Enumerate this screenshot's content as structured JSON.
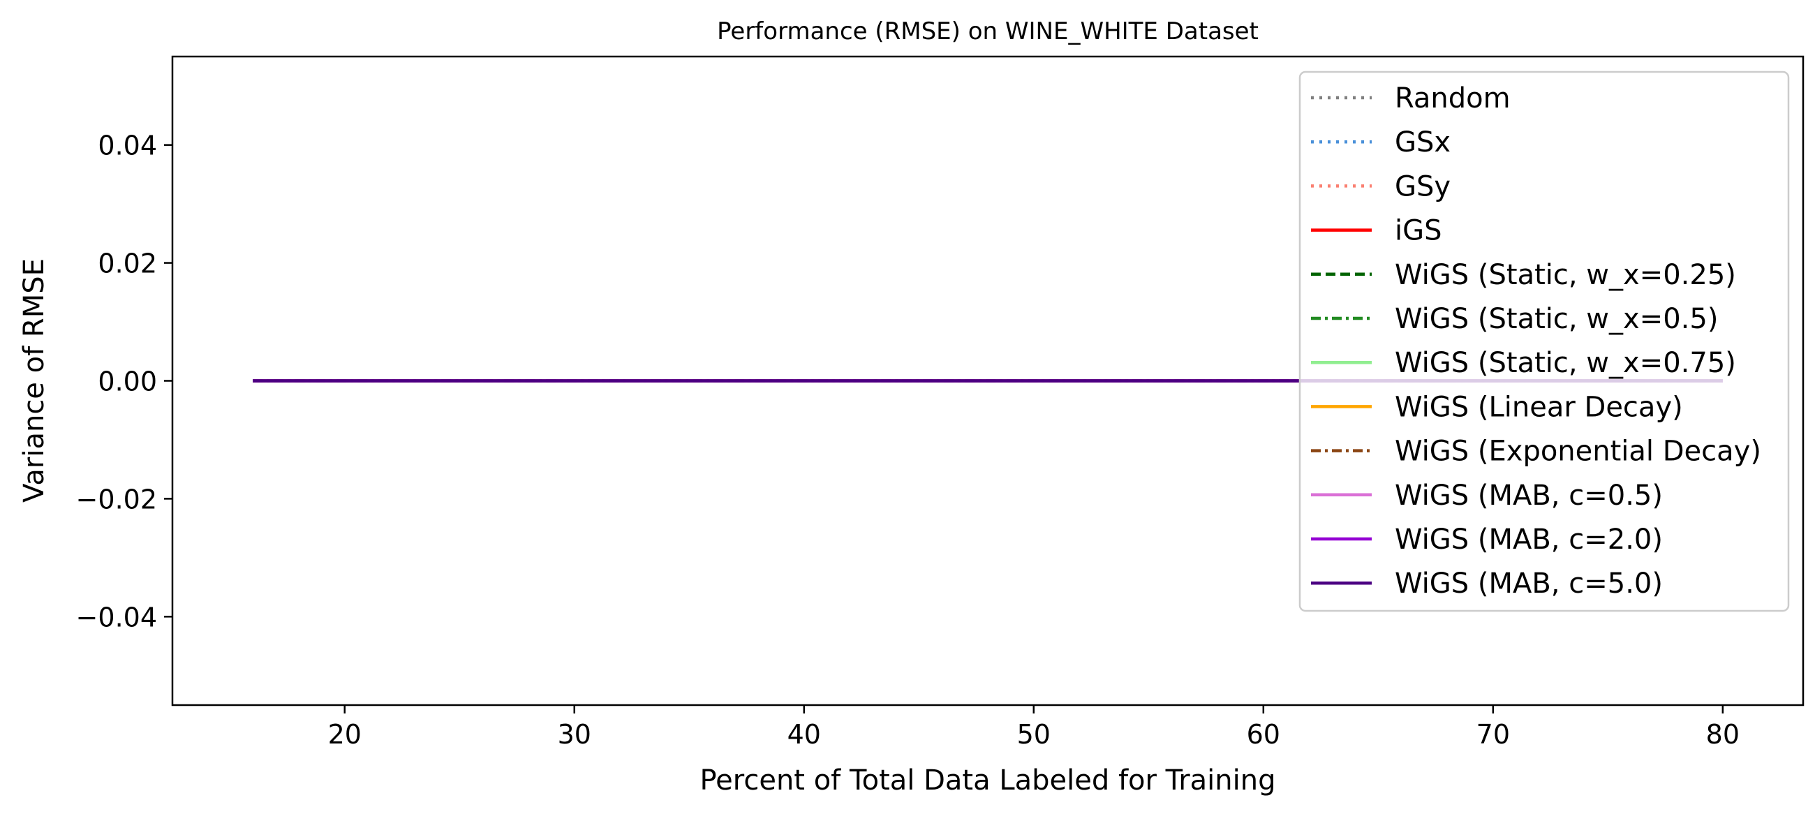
{
  "chart_data": {
    "type": "line",
    "title": "Performance (RMSE) on WINE_WHITE Dataset",
    "xlabel": "Percent of Total Data Labeled for Training",
    "ylabel": "Variance of RMSE",
    "xlim": [
      12.5,
      83.5
    ],
    "ylim": [
      -0.055,
      0.055
    ],
    "xticks": [
      20,
      30,
      40,
      50,
      60,
      70,
      80
    ],
    "yticks": [
      0.04,
      0.02,
      0.0,
      -0.02,
      -0.04
    ],
    "xtick_labels": [
      "20",
      "30",
      "40",
      "50",
      "60",
      "70",
      "80"
    ],
    "ytick_labels": [
      "0.04",
      "0.02",
      "0.00",
      "−0.02",
      "−0.04"
    ],
    "grid": false,
    "legend_position": "top-right",
    "x": [
      16,
      20,
      30,
      40,
      50,
      60,
      70,
      80
    ],
    "series": [
      {
        "name": "Random",
        "color": "#808080",
        "dash": "dotted",
        "values": [
          0,
          0,
          0,
          0,
          0,
          0,
          0,
          0
        ]
      },
      {
        "name": "GSx",
        "color": "#4a90d9",
        "dash": "dotted",
        "values": [
          0,
          0,
          0,
          0,
          0,
          0,
          0,
          0
        ]
      },
      {
        "name": "GSy",
        "color": "#fa8072",
        "dash": "dotted",
        "values": [
          0,
          0,
          0,
          0,
          0,
          0,
          0,
          0
        ]
      },
      {
        "name": "iGS",
        "color": "#ff0000",
        "dash": "solid",
        "values": [
          0,
          0,
          0,
          0,
          0,
          0,
          0,
          0
        ]
      },
      {
        "name": "WiGS (Static, w_x=0.25)",
        "color": "#006400",
        "dash": "dashed",
        "values": [
          0,
          0,
          0,
          0,
          0,
          0,
          0,
          0
        ]
      },
      {
        "name": "WiGS (Static, w_x=0.5)",
        "color": "#228b22",
        "dash": "dashdot",
        "values": [
          0,
          0,
          0,
          0,
          0,
          0,
          0,
          0
        ]
      },
      {
        "name": "WiGS (Static, w_x=0.75)",
        "color": "#90ee90",
        "dash": "solid",
        "values": [
          0,
          0,
          0,
          0,
          0,
          0,
          0,
          0
        ]
      },
      {
        "name": "WiGS (Linear Decay)",
        "color": "#ffa500",
        "dash": "solid",
        "values": [
          0,
          0,
          0,
          0,
          0,
          0,
          0,
          0
        ]
      },
      {
        "name": "WiGS (Exponential Decay)",
        "color": "#8b4513",
        "dash": "dashdot",
        "values": [
          0,
          0,
          0,
          0,
          0,
          0,
          0,
          0
        ]
      },
      {
        "name": "WiGS (MAB, c=0.5)",
        "color": "#da70d6",
        "dash": "solid",
        "values": [
          0,
          0,
          0,
          0,
          0,
          0,
          0,
          0
        ]
      },
      {
        "name": "WiGS (MAB, c=2.0)",
        "color": "#9400d3",
        "dash": "solid",
        "values": [
          0,
          0,
          0,
          0,
          0,
          0,
          0,
          0
        ]
      },
      {
        "name": "WiGS (MAB, c=5.0)",
        "color": "#4b0082",
        "dash": "solid",
        "values": [
          0,
          0,
          0,
          0,
          0,
          0,
          0,
          0
        ]
      }
    ]
  }
}
